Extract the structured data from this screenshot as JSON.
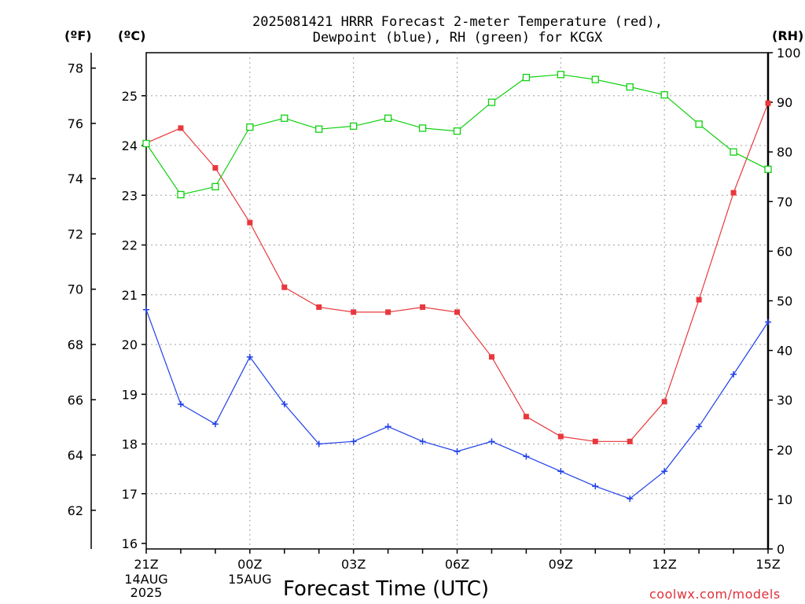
{
  "title_line1": "2025081421 HRRR Forecast 2-meter Temperature (red),",
  "title_line2": "Dewpoint (blue), RH (green) for KCGX",
  "unit_f": "(ºF)",
  "unit_c": "(ºC)",
  "unit_rh": "(RH)",
  "xlabel": "Forecast Time (UTC)",
  "credit": "coolwx.com/models",
  "colors": {
    "temperature": "#e8383d",
    "dewpoint": "#2040e8",
    "rh": "#10d010",
    "grid": "#a0a0a0"
  },
  "chart_data": {
    "type": "line",
    "title": "2025081421 HRRR Forecast 2-meter Temperature (red), Dewpoint (blue), RH (green) for KCGX",
    "xlabel": "Forecast Time (UTC)",
    "x": [
      "21Z",
      "22Z",
      "23Z",
      "00Z",
      "01Z",
      "02Z",
      "03Z",
      "04Z",
      "05Z",
      "06Z",
      "07Z",
      "08Z",
      "09Z",
      "10Z",
      "11Z",
      "12Z",
      "13Z",
      "14Z",
      "15Z"
    ],
    "x_ticks": [
      {
        "label": "21Z",
        "sub": [
          "14AUG",
          "2025"
        ]
      },
      {
        "label": "00Z",
        "sub": [
          "15AUG"
        ]
      },
      {
        "label": "03Z",
        "sub": []
      },
      {
        "label": "06Z",
        "sub": []
      },
      {
        "label": "09Z",
        "sub": []
      },
      {
        "label": "12Z",
        "sub": []
      },
      {
        "label": "15Z",
        "sub": []
      }
    ],
    "y_celsius": {
      "label": "(ºC)",
      "ylim": [
        16,
        25.9
      ],
      "ticks": [
        16,
        17,
        18,
        19,
        20,
        21,
        22,
        23,
        24,
        25
      ]
    },
    "y_fahrenheit": {
      "label": "(ºF)",
      "ticks": [
        62,
        64,
        66,
        68,
        70,
        72,
        74,
        76,
        78
      ]
    },
    "y_rh": {
      "label": "(RH)",
      "ylim": [
        0,
        100
      ],
      "ticks": [
        0,
        10,
        20,
        30,
        40,
        50,
        60,
        70,
        80,
        90,
        100
      ]
    },
    "grid": true,
    "series": [
      {
        "name": "Temperature",
        "axis": "celsius",
        "marker": "filled-square",
        "values": [
          24.05,
          24.35,
          23.55,
          22.45,
          21.15,
          20.75,
          20.65,
          20.65,
          20.75,
          20.65,
          19.75,
          18.55,
          18.15,
          18.05,
          18.05,
          18.85,
          20.9,
          23.05,
          24.85
        ]
      },
      {
        "name": "Dewpoint",
        "axis": "celsius",
        "marker": "plus",
        "values": [
          20.7,
          18.8,
          18.4,
          19.75,
          18.8,
          18.0,
          18.05,
          18.35,
          18.05,
          17.85,
          18.05,
          17.75,
          17.45,
          17.15,
          16.9,
          17.45,
          18.35,
          19.4,
          20.45
        ]
      },
      {
        "name": "RH",
        "axis": "rh",
        "marker": "open-square",
        "values": [
          81.7,
          71.4,
          73.0,
          85.0,
          86.8,
          84.6,
          85.2,
          86.8,
          84.8,
          84.2,
          90.0,
          95.0,
          95.6,
          94.6,
          93.1,
          91.5,
          85.6,
          80.0,
          76.5
        ]
      }
    ]
  }
}
